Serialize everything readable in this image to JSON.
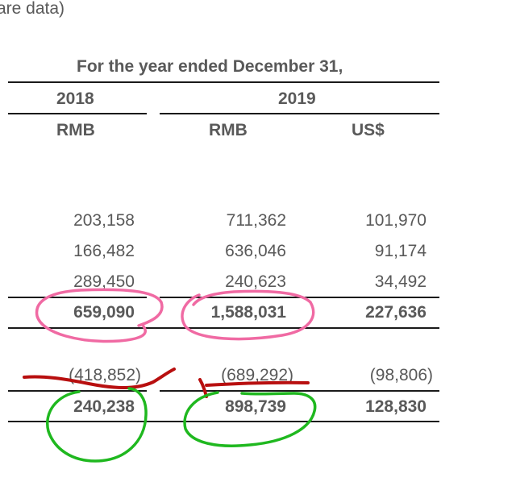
{
  "caption_fragment": "are data)",
  "header": {
    "period_title": "For the year ended December 31,",
    "years": [
      "2018",
      "2019"
    ],
    "currencies": [
      "RMB",
      "RMB",
      "US$"
    ]
  },
  "rows": [
    {
      "values": [
        "203,158",
        "711,362",
        "101,970"
      ]
    },
    {
      "values": [
        "166,482",
        "636,046",
        "91,174"
      ]
    },
    {
      "values": [
        "289,450",
        "240,623",
        "34,492"
      ]
    },
    {
      "values": [
        "659,090",
        "1,588,031",
        "227,636"
      ],
      "bold": true
    },
    {
      "values": [
        "(418,852)",
        "(689,292)",
        "(98,806)"
      ]
    },
    {
      "values": [
        "240,238",
        "898,739",
        "128,830"
      ],
      "bold": true
    }
  ],
  "annotations": {
    "pink_circles": [
      "659,090",
      "1,588,031"
    ],
    "red_strikes": [
      "(418,852)",
      "(689,292)"
    ],
    "green_circles": [
      "240,238",
      "898,739"
    ],
    "colors": {
      "pink": "#f06aa3",
      "red": "#b80f0f",
      "green": "#1fb81f",
      "text": "#595959",
      "rule": "#1a1a1a"
    }
  }
}
